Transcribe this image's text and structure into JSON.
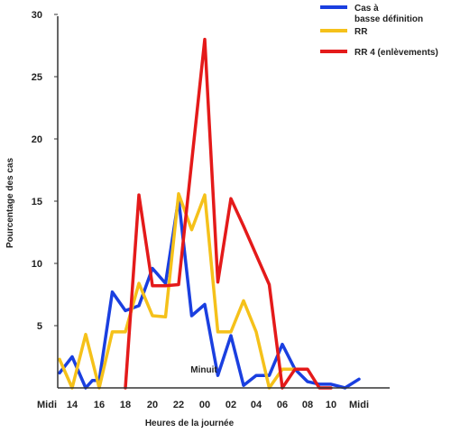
{
  "chart_data": {
    "type": "line",
    "ylabel": "Pourcentage des cas",
    "xlabel": "Heures de la journée",
    "ylim": [
      0,
      30
    ],
    "yticks": [
      30,
      25,
      20,
      15,
      10,
      5
    ],
    "xticks": [
      "Midi",
      "14",
      "16",
      "18",
      "20",
      "22",
      "00",
      "02",
      "04",
      "06",
      "08",
      "10",
      "Midi"
    ],
    "annotation": "Minuit",
    "legend_position": "top-right",
    "series": [
      {
        "name": "Cas à basse définition",
        "color": "#1a3fe0",
        "x": [
          13.0,
          14.0,
          15.0,
          15.5,
          16.0,
          17.0,
          18.0,
          19.0,
          20.0,
          21.0,
          22.0,
          23.0,
          24.0,
          25.0,
          26.0,
          27.0,
          28.0,
          29.0,
          30.0,
          31.0,
          32.0,
          33.0,
          34.0,
          35.0,
          36.0
        ],
        "y": [
          1.2,
          2.5,
          0.0,
          0.6,
          0.6,
          7.7,
          6.2,
          6.6,
          9.6,
          8.4,
          15.2,
          5.8,
          6.7,
          1.0,
          4.2,
          0.2,
          1.0,
          1.0,
          3.5,
          1.5,
          0.5,
          0.3,
          0.3,
          0.0,
          0.7
        ]
      },
      {
        "name": "RR",
        "color": "#f5c11a",
        "x": [
          13.0,
          14.0,
          15.0,
          16.0,
          17.0,
          18.0,
          19.0,
          20.0,
          21.0,
          22.0,
          23.0,
          24.0,
          25.0,
          26.0,
          27.0,
          28.0,
          29.0,
          30.0,
          31.0
        ],
        "y": [
          2.3,
          0.0,
          4.3,
          0.0,
          4.5,
          4.5,
          8.4,
          5.8,
          5.7,
          15.6,
          12.7,
          15.5,
          4.5,
          4.5,
          7.0,
          4.5,
          0.0,
          1.5,
          1.5
        ]
      },
      {
        "name": "RR 4 (enlèvements)",
        "color": "#e41a1a",
        "x": [
          18.0,
          19.0,
          20.0,
          21.0,
          22.0,
          24.0,
          25.0,
          26.0,
          27.0,
          29.0,
          30.0,
          31.0,
          32.0,
          33.0,
          34.0
        ],
        "y": [
          0.0,
          15.5,
          8.2,
          8.2,
          8.3,
          28.0,
          8.5,
          15.2,
          13.0,
          8.3,
          0.0,
          1.5,
          1.5,
          0.0,
          0.0
        ]
      }
    ]
  }
}
